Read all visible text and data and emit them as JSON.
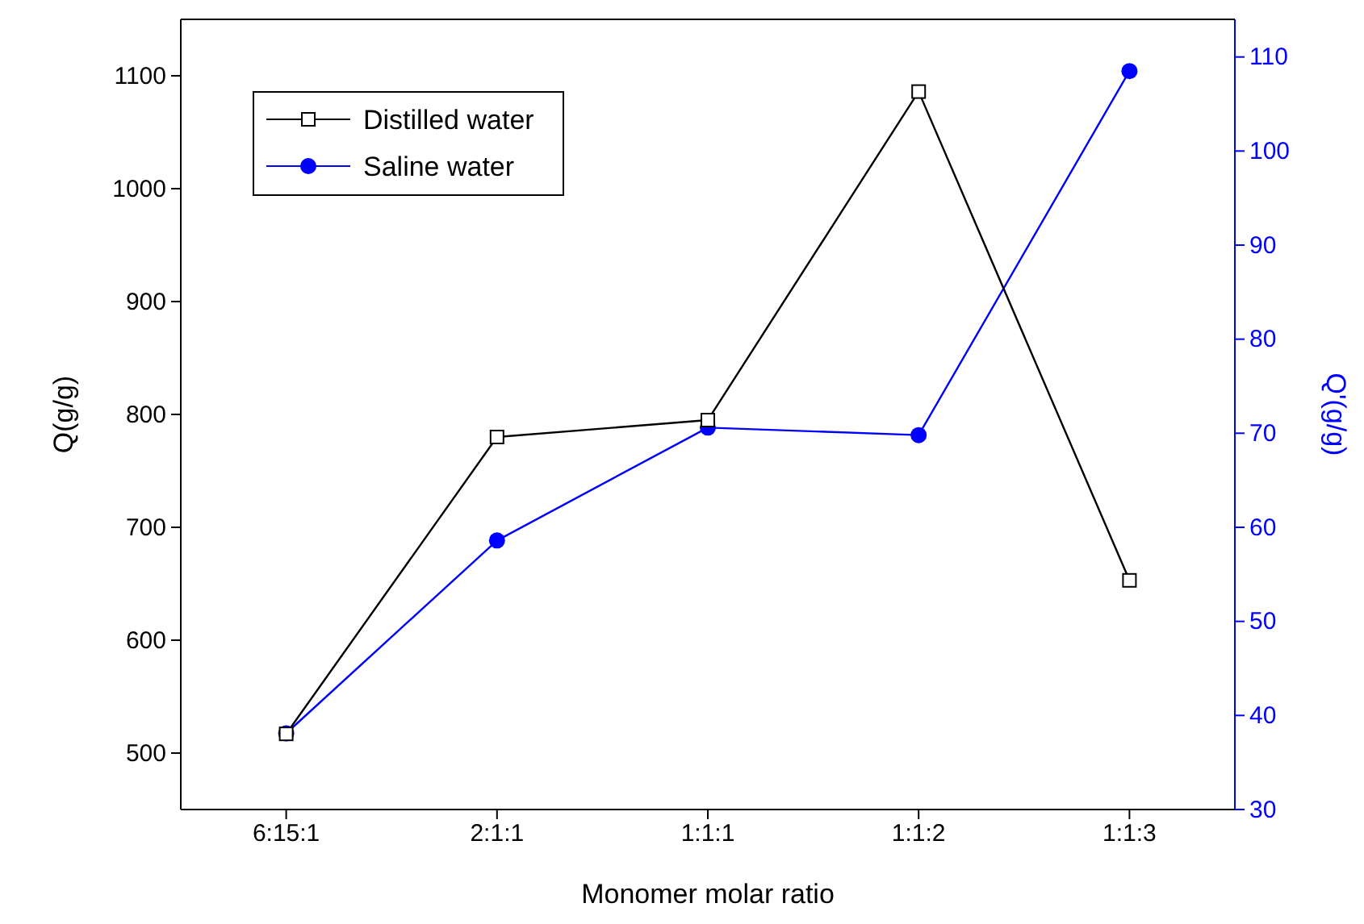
{
  "chart_data": {
    "type": "line",
    "xlabel": "Monomer molar ratio",
    "ylabel": "Q(g/g)",
    "y2label": "Q'(g/g)",
    "categories": [
      "6:15:1",
      "2:1:1",
      "1:1:1",
      "1:1:2",
      "1:1:3"
    ],
    "series": [
      {
        "name": "Distilled water",
        "color": "#000000",
        "values": [
          517,
          780,
          795,
          1086,
          653
        ],
        "marker": "square"
      },
      {
        "name": "Saline water",
        "color": "#0000ff",
        "values": [
          38.1,
          58.6,
          70.6,
          69.8,
          108.5
        ],
        "marker": "circle",
        "axis": "y2"
      }
    ],
    "ylim": [
      450,
      1150
    ],
    "yticks": [
      500,
      600,
      700,
      800,
      900,
      1000,
      1100
    ],
    "y2lim": [
      30,
      114
    ],
    "y2ticks": [
      30,
      40,
      50,
      60,
      70,
      80,
      90,
      100,
      110
    ],
    "legend": "top left",
    "grid": false
  }
}
